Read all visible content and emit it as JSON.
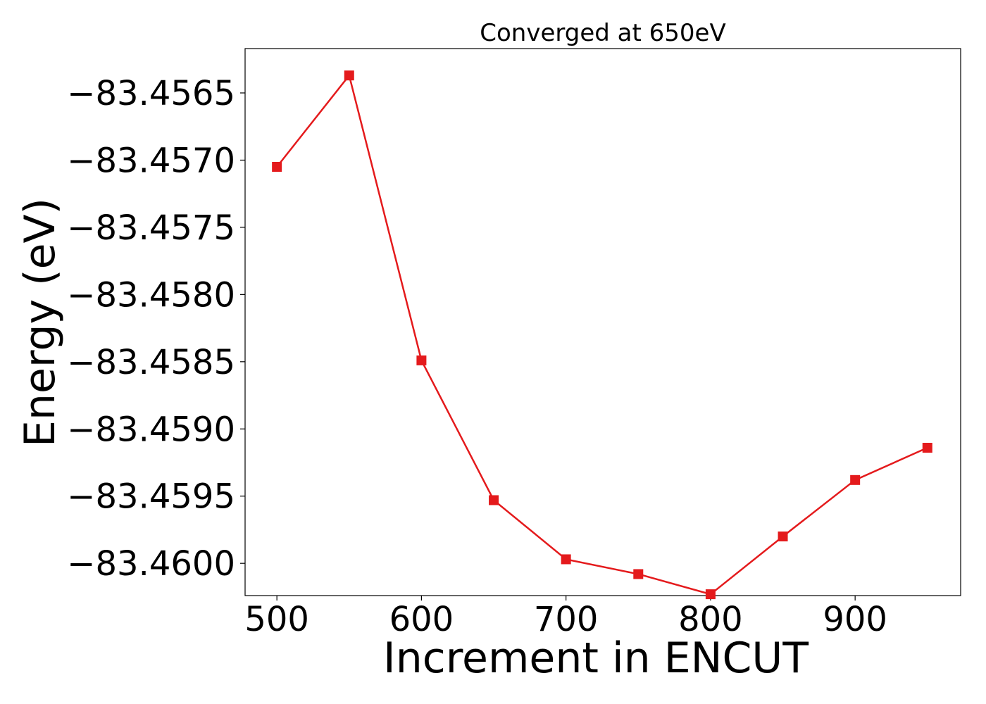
{
  "chart_data": {
    "type": "line",
    "title": "Converged at 650eV",
    "xlabel": "Increment in ENCUT",
    "ylabel": "Energy (eV)",
    "xlim": [
      478,
      973
    ],
    "ylim": [
      -83.46024,
      -83.45617
    ],
    "xticks": [
      500,
      600,
      700,
      800,
      900
    ],
    "xtick_labels": [
      "500",
      "600",
      "700",
      "800",
      "900"
    ],
    "yticks": [
      -83.4565,
      -83.457,
      -83.4575,
      -83.458,
      -83.4585,
      -83.459,
      -83.4595,
      -83.46
    ],
    "ytick_labels": [
      "−83.4565",
      "−83.4570",
      "−83.4575",
      "−83.4580",
      "−83.4585",
      "−83.4590",
      "−83.4595",
      "−83.4600"
    ],
    "grid": false,
    "marker": "square",
    "color": "#e41a1c",
    "series": [
      {
        "x": [
          500,
          550,
          600,
          650,
          700,
          750,
          800,
          850,
          900,
          950
        ],
        "y": [
          -83.45705,
          -83.45637,
          -83.45849,
          -83.45953,
          -83.45997,
          -83.46008,
          -83.46023,
          -83.4598,
          -83.45938,
          -83.45914
        ]
      }
    ]
  }
}
